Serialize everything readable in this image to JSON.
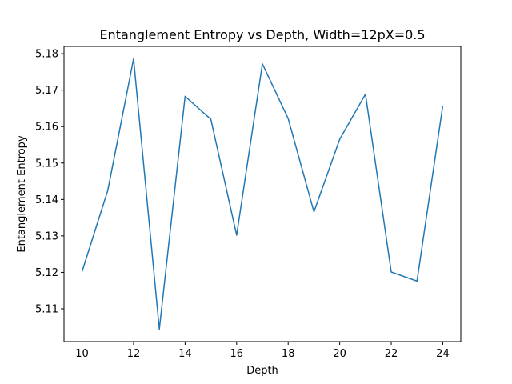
{
  "chart_data": {
    "type": "line",
    "title": "Entanglement Entropy vs Depth, Width=12pX=0.5",
    "xlabel": "Depth",
    "ylabel": "Entanglement Entropy",
    "xlim": [
      9.3,
      24.7
    ],
    "ylim": [
      5.101,
      5.182
    ],
    "xticks": [
      10,
      12,
      14,
      16,
      18,
      20,
      22,
      24
    ],
    "yticks": [
      5.11,
      5.12,
      5.13,
      5.14,
      5.15,
      5.16,
      5.17,
      5.18
    ],
    "ytick_labels": [
      "5.11",
      "5.12",
      "5.13",
      "5.14",
      "5.15",
      "5.16",
      "5.17",
      "5.18"
    ],
    "grid": false,
    "series": [
      {
        "color": "#1f77b4",
        "x": [
          10,
          11,
          12,
          13,
          14,
          15,
          16,
          17,
          18,
          19,
          20,
          21,
          22,
          23,
          24
        ],
        "y": [
          5.1202,
          5.1425,
          5.1786,
          5.1044,
          5.1683,
          5.162,
          5.1302,
          5.1772,
          5.1622,
          5.1366,
          5.1565,
          5.1689,
          5.1201,
          5.1176,
          5.1657
        ]
      }
    ]
  }
}
